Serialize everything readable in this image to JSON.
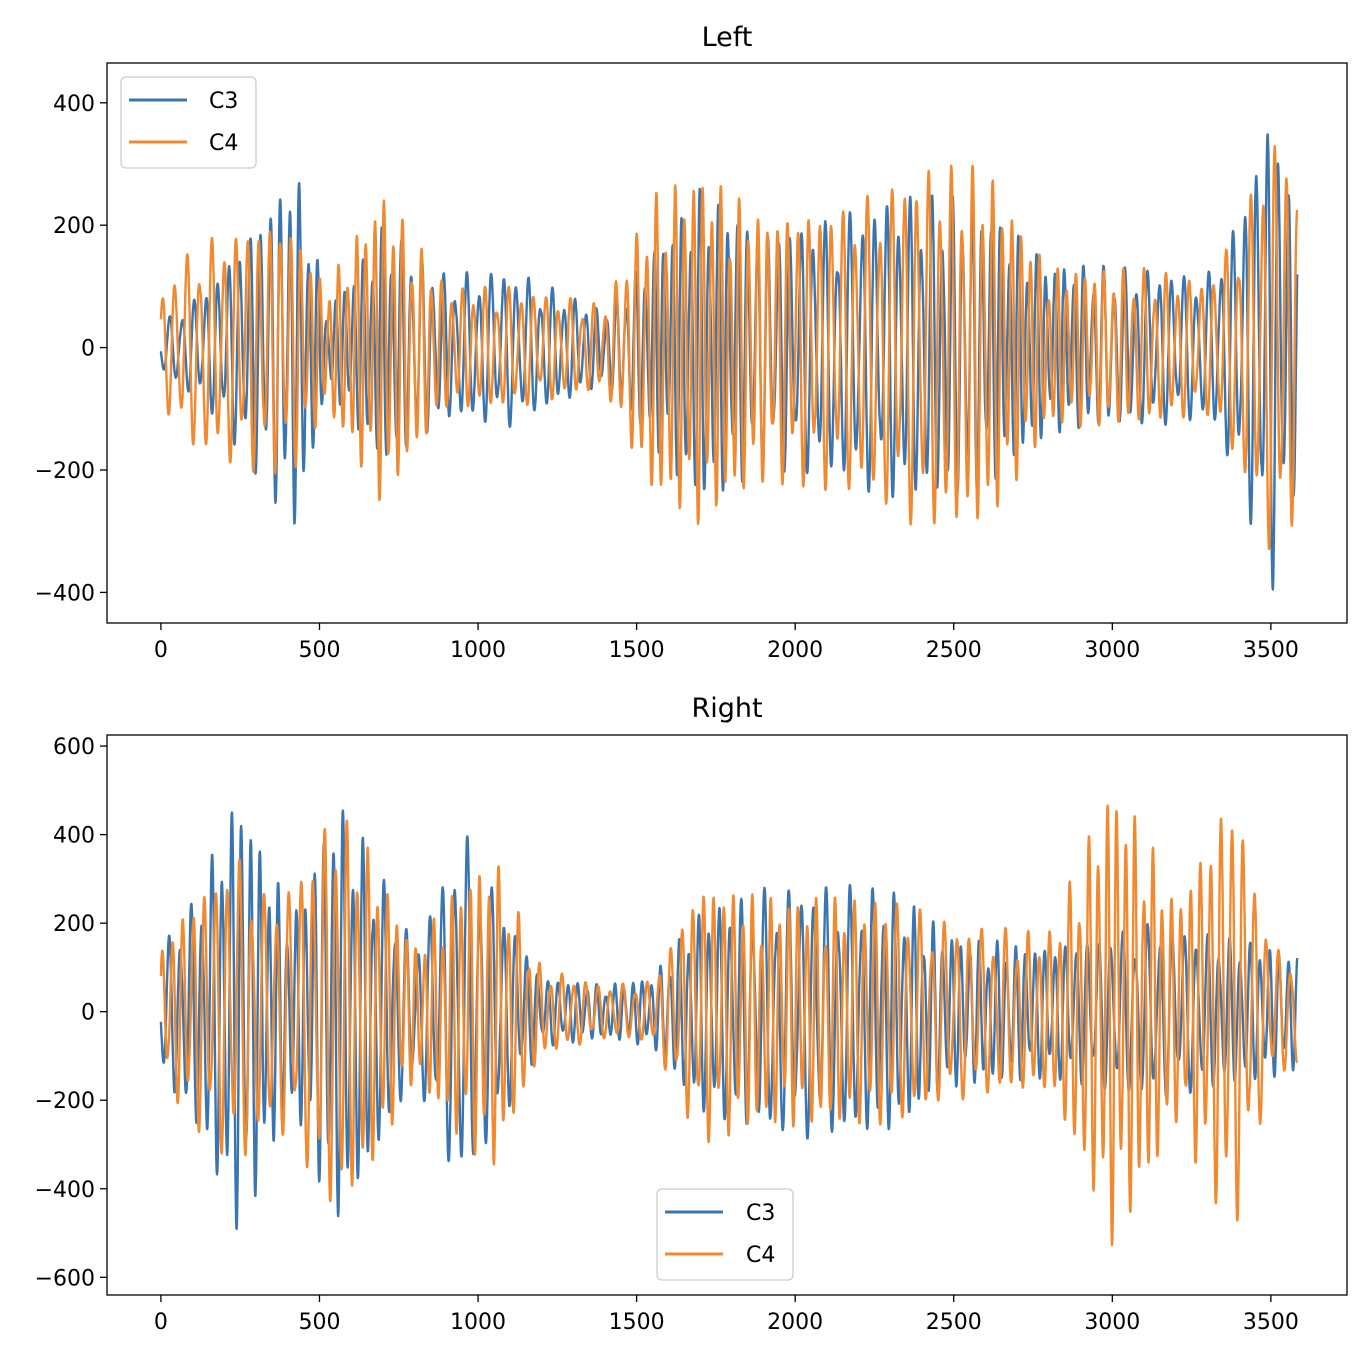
{
  "colors": {
    "C3": "#3a75b0",
    "C4": "#f0892f"
  },
  "chart_data": [
    {
      "type": "line",
      "title": "Left",
      "xlabel": "",
      "ylabel": "",
      "xlim": [
        -170,
        3740
      ],
      "ylim": [
        -450,
        465
      ],
      "xticks": [
        0,
        500,
        1000,
        1500,
        2000,
        2500,
        3000,
        3500
      ],
      "xtick_labels": [
        "0",
        "500",
        "1000",
        "1500",
        "2000",
        "2500",
        "3000",
        "3500"
      ],
      "yticks": [
        400,
        200,
        0,
        -200,
        -400
      ],
      "ytick_labels": [
        "400",
        "200",
        "0",
        "−200",
        "−400"
      ],
      "legend": {
        "location": "upper-left",
        "entries": [
          "C3",
          "C4"
        ]
      },
      "n_samples": 3584,
      "series": [
        {
          "name": "C3",
          "color_key": "C3",
          "seed": 11,
          "envelope": [
            [
              0,
              40
            ],
            [
              150,
              100
            ],
            [
              330,
              230
            ],
            [
              420,
              300
            ],
            [
              470,
              220
            ],
            [
              520,
              60
            ],
            [
              640,
              150
            ],
            [
              700,
              200
            ],
            [
              900,
              120
            ],
            [
              1100,
              130
            ],
            [
              1400,
              60
            ],
            [
              1550,
              160
            ],
            [
              1700,
              260
            ],
            [
              1900,
              200
            ],
            [
              2100,
              210
            ],
            [
              2300,
              250
            ],
            [
              2500,
              250
            ],
            [
              2600,
              230
            ],
            [
              2800,
              140
            ],
            [
              3100,
              130
            ],
            [
              3300,
              120
            ],
            [
              3400,
              220
            ],
            [
              3500,
              410
            ],
            [
              3590,
              200
            ]
          ]
        },
        {
          "name": "C4",
          "color_key": "C4",
          "seed": 23,
          "envelope": [
            [
              0,
              90
            ],
            [
              100,
              170
            ],
            [
              330,
              210
            ],
            [
              420,
              200
            ],
            [
              520,
              100
            ],
            [
              700,
              260
            ],
            [
              800,
              180
            ],
            [
              900,
              100
            ],
            [
              1100,
              100
            ],
            [
              1400,
              70
            ],
            [
              1550,
              250
            ],
            [
              1700,
              290
            ],
            [
              1900,
              220
            ],
            [
              2200,
              240
            ],
            [
              2400,
              300
            ],
            [
              2600,
              300
            ],
            [
              2800,
              130
            ],
            [
              3100,
              130
            ],
            [
              3300,
              110
            ],
            [
              3400,
              200
            ],
            [
              3520,
              370
            ],
            [
              3590,
              250
            ]
          ]
        }
      ]
    },
    {
      "type": "line",
      "title": "Right",
      "xlabel": "",
      "ylabel": "",
      "xlim": [
        -170,
        3740
      ],
      "ylim": [
        -640,
        625
      ],
      "xticks": [
        0,
        500,
        1000,
        1500,
        2000,
        2500,
        3000,
        3500
      ],
      "xtick_labels": [
        "0",
        "500",
        "1000",
        "1500",
        "2000",
        "2500",
        "3000",
        "3500"
      ],
      "yticks": [
        600,
        400,
        200,
        0,
        -200,
        -400,
        -600
      ],
      "ytick_labels": [
        "600",
        "400",
        "200",
        "0",
        "−200",
        "−400",
        "−600"
      ],
      "legend": {
        "location": "lower-center",
        "entries": [
          "C3",
          "C4"
        ]
      },
      "n_samples": 3584,
      "series": [
        {
          "name": "C3",
          "color_key": "C3",
          "seed": 37,
          "envelope": [
            [
              0,
              150
            ],
            [
              100,
              250
            ],
            [
              250,
              520
            ],
            [
              330,
              350
            ],
            [
              420,
              220
            ],
            [
              550,
              490
            ],
            [
              650,
              380
            ],
            [
              800,
              150
            ],
            [
              950,
              420
            ],
            [
              1050,
              280
            ],
            [
              1200,
              80
            ],
            [
              1400,
              60
            ],
            [
              1550,
              80
            ],
            [
              1700,
              230
            ],
            [
              1900,
              280
            ],
            [
              2100,
              290
            ],
            [
              2300,
              280
            ],
            [
              2500,
              170
            ],
            [
              2800,
              150
            ],
            [
              3000,
              180
            ],
            [
              3100,
              200
            ],
            [
              3300,
              180
            ],
            [
              3500,
              150
            ],
            [
              3590,
              130
            ]
          ]
        },
        {
          "name": "C4",
          "color_key": "C4",
          "seed": 53,
          "envelope": [
            [
              0,
              150
            ],
            [
              100,
              260
            ],
            [
              250,
              360
            ],
            [
              330,
              260
            ],
            [
              420,
              300
            ],
            [
              550,
              470
            ],
            [
              650,
              380
            ],
            [
              800,
              150
            ],
            [
              950,
              300
            ],
            [
              1050,
              360
            ],
            [
              1200,
              100
            ],
            [
              1400,
              60
            ],
            [
              1550,
              70
            ],
            [
              1700,
              300
            ],
            [
              1900,
              260
            ],
            [
              2100,
              260
            ],
            [
              2300,
              260
            ],
            [
              2500,
              200
            ],
            [
              2800,
              180
            ],
            [
              3000,
              530
            ],
            [
              3100,
              420
            ],
            [
              3200,
              250
            ],
            [
              3380,
              520
            ],
            [
              3500,
              150
            ],
            [
              3590,
              130
            ]
          ]
        }
      ]
    }
  ]
}
